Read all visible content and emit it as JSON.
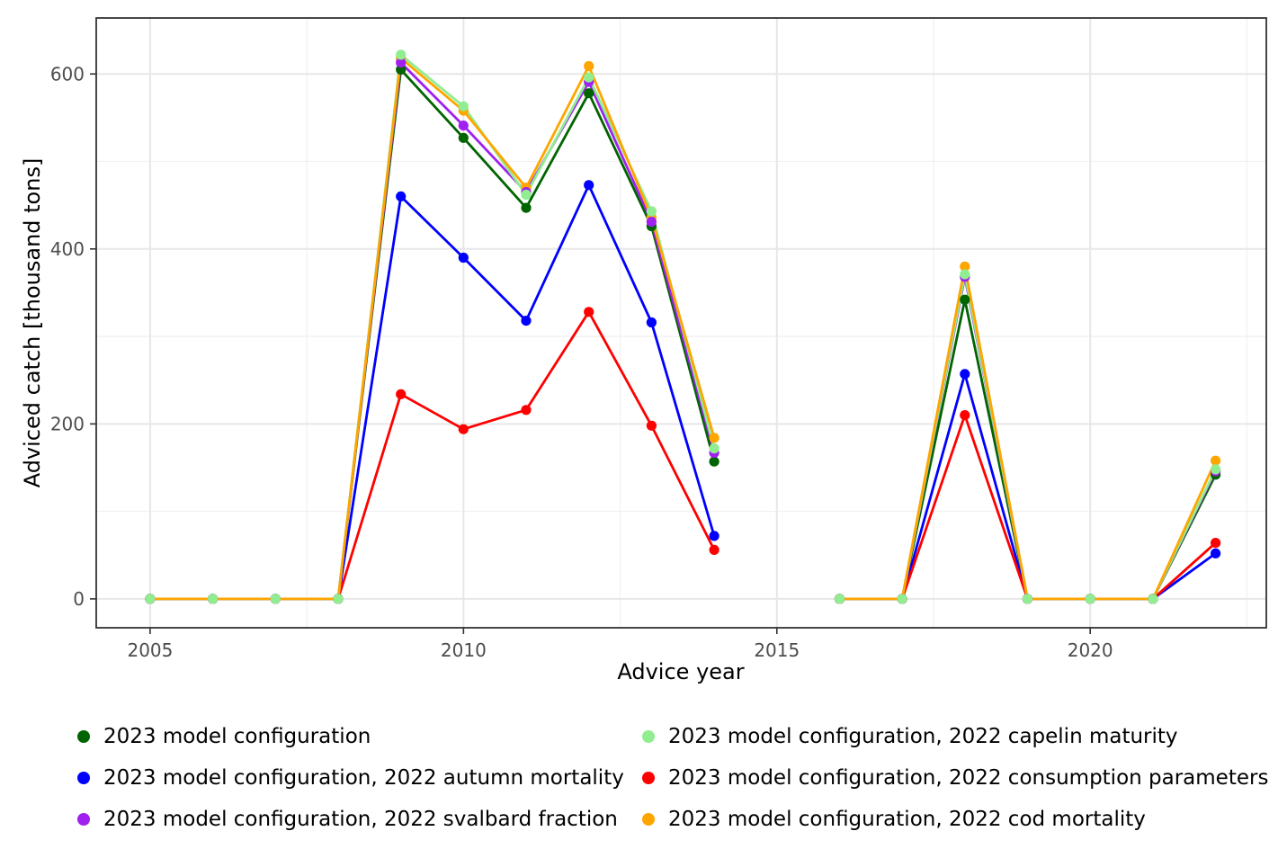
{
  "chart_data": {
    "type": "line",
    "title": "",
    "xlabel": "Advice year",
    "ylabel": "Adviced catch [thousand tons]",
    "x": [
      2005,
      2006,
      2007,
      2008,
      2009,
      2010,
      2011,
      2012,
      2013,
      2014,
      2015,
      2016,
      2017,
      2018,
      2019,
      2020,
      2021,
      2022
    ],
    "x_ticks": [
      2005,
      2010,
      2015,
      2020
    ],
    "x_minor_gridlines": [
      2007.5,
      2012.5,
      2017.5,
      2022.5
    ],
    "y_ticks": [
      0,
      200,
      400,
      600
    ],
    "y_minor_gridlines": [
      100,
      300,
      500
    ],
    "xlim": [
      2004.14,
      2022.81
    ],
    "ylim": [
      -33,
      664
    ],
    "grid": "on",
    "legend_position": "bottom",
    "note_missing_year": 2015,
    "series": [
      {
        "name": "2023 model configuration",
        "color": "#006400",
        "values": [
          0,
          0,
          0,
          0,
          605,
          527,
          447,
          578,
          426,
          157,
          null,
          0,
          0,
          342,
          0,
          0,
          0,
          142
        ]
      },
      {
        "name": "2023 model configuration, 2022 capelin maturity",
        "color": "#90EE90",
        "values": [
          0,
          0,
          0,
          0,
          622,
          563,
          462,
          596,
          443,
          172,
          null,
          0,
          0,
          371,
          0,
          0,
          0,
          148
        ]
      },
      {
        "name": "2023 model configuration, 2022 autumn mortality",
        "color": "#0000FF",
        "values": [
          0,
          0,
          0,
          0,
          460,
          390,
          318,
          473,
          316,
          72,
          null,
          0,
          0,
          257,
          0,
          0,
          0,
          52
        ]
      },
      {
        "name": "2023 model configuration, 2022 consumption parameters",
        "color": "#FF0000",
        "values": [
          0,
          0,
          0,
          0,
          234,
          194,
          216,
          328,
          198,
          56,
          null,
          0,
          0,
          210,
          0,
          0,
          0,
          64
        ]
      },
      {
        "name": "2023 model configuration, 2022 svalbard fraction",
        "color": "#A020F0",
        "values": [
          0,
          0,
          0,
          0,
          613,
          541,
          465,
          591,
          431,
          167,
          null,
          0,
          0,
          368,
          0,
          0,
          0,
          146
        ]
      },
      {
        "name": "2023 model configuration, 2022 cod mortality",
        "color": "#FFA500",
        "values": [
          0,
          0,
          0,
          0,
          618,
          558,
          470,
          609,
          436,
          184,
          null,
          0,
          0,
          380,
          0,
          0,
          0,
          158
        ]
      }
    ],
    "z_order_lines": [
      0,
      2,
      3,
      4,
      1,
      5
    ],
    "z_order_points": [
      0,
      2,
      3,
      5,
      4,
      1
    ],
    "style": {
      "major_grid_color": "#E7E7E7",
      "minor_grid_color": "#F1F1F1",
      "panel_border_color": "#333333",
      "tick_color": "#333333",
      "tick_label_color": "#4d4d4d"
    }
  }
}
